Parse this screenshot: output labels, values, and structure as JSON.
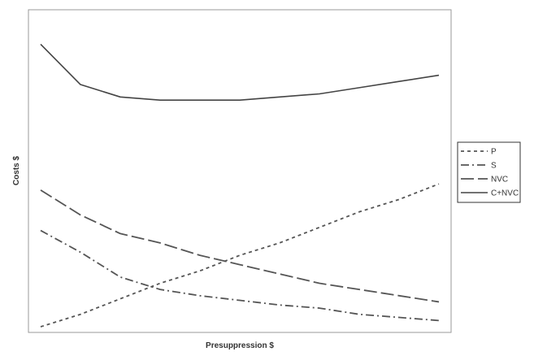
{
  "chart_data": {
    "type": "line",
    "title": "",
    "xlabel": "Presuppression $",
    "ylabel": "Costs $",
    "x": [
      0.0,
      0.1,
      0.2,
      0.3,
      0.4,
      0.5,
      0.6,
      0.7,
      0.8,
      0.9,
      1.0
    ],
    "xlim": [
      0,
      1
    ],
    "ylim": [
      0,
      1
    ],
    "x_ticks_shown": false,
    "y_ticks_shown": false,
    "grid": false,
    "legend_position": "outside-right",
    "series": [
      {
        "name": "P",
        "line_style": "dotted",
        "color": "#555555",
        "values": [
          0.0,
          0.04,
          0.09,
          0.14,
          0.18,
          0.23,
          0.27,
          0.32,
          0.37,
          0.41,
          0.46
        ]
      },
      {
        "name": "S",
        "line_style": "dash-dot",
        "color": "#555555",
        "values": [
          0.31,
          0.24,
          0.16,
          0.12,
          0.1,
          0.085,
          0.07,
          0.06,
          0.04,
          0.03,
          0.02
        ]
      },
      {
        "name": "NVC",
        "line_style": "long-dash",
        "color": "#555555",
        "values": [
          0.44,
          0.36,
          0.3,
          0.27,
          0.23,
          0.2,
          0.17,
          0.14,
          0.12,
          0.1,
          0.08
        ]
      },
      {
        "name": "C+NVC",
        "line_style": "solid",
        "color": "#444444",
        "values": [
          0.91,
          0.78,
          0.74,
          0.73,
          0.73,
          0.73,
          0.74,
          0.75,
          0.77,
          0.79,
          0.81
        ]
      }
    ]
  }
}
